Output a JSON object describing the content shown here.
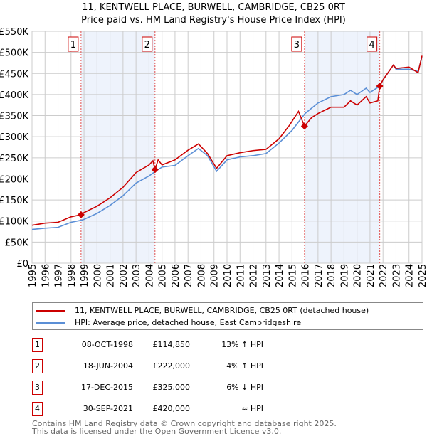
{
  "title_line1": "11, KENTWELL PLACE, BURWELL, CAMBRIDGE, CB25 0RT",
  "title_line2": "Price paid vs. HM Land Registry's House Price Index (HPI)",
  "chart_data": {
    "type": "line",
    "xlim": [
      1995,
      2025
    ],
    "ylim": [
      0,
      550000
    ],
    "yticks": [
      0,
      50000,
      100000,
      150000,
      200000,
      250000,
      300000,
      350000,
      400000,
      450000,
      500000,
      550000
    ],
    "ytick_labels": [
      "£0",
      "£50K",
      "£100K",
      "£150K",
      "£200K",
      "£250K",
      "£300K",
      "£350K",
      "£400K",
      "£450K",
      "£500K",
      "£550K"
    ],
    "xticks": [
      1995,
      1996,
      1997,
      1998,
      1999,
      2000,
      2001,
      2002,
      2003,
      2004,
      2005,
      2006,
      2007,
      2008,
      2009,
      2010,
      2011,
      2012,
      2013,
      2014,
      2015,
      2016,
      2017,
      2018,
      2019,
      2020,
      2021,
      2022,
      2023,
      2024,
      2025
    ],
    "grid": true,
    "legend_placement": "below",
    "series": [
      {
        "name": "11, KENTWELL PLACE, BURWELL, CAMBRIDGE, CB25 0RT (detached house)",
        "color": "#cc0000",
        "x": [
          1995,
          1996,
          1997,
          1998,
          1998.77,
          1999,
          2000,
          2001,
          2002,
          2003,
          2004,
          2004.3,
          2004.46,
          2004.7,
          2005,
          2006,
          2007,
          2007.8,
          2008.5,
          2009.2,
          2010,
          2011,
          2012,
          2013,
          2014,
          2014.8,
          2015.5,
          2015.96,
          2016.5,
          2017,
          2018,
          2019,
          2019.5,
          2020,
          2020.7,
          2021,
          2021.6,
          2021.75,
          2022,
          2022.8,
          2023,
          2024,
          2024.7,
          2025
        ],
        "y": [
          90000,
          95000,
          97000,
          110000,
          114850,
          120000,
          135000,
          155000,
          180000,
          215000,
          233000,
          243000,
          222000,
          245000,
          233000,
          245000,
          268000,
          283000,
          260000,
          225000,
          255000,
          262000,
          267000,
          270000,
          295000,
          327000,
          360000,
          325000,
          345000,
          355000,
          370000,
          370000,
          385000,
          375000,
          395000,
          380000,
          385000,
          420000,
          435000,
          470000,
          462000,
          465000,
          452000,
          492000
        ]
      },
      {
        "name": "HPI: Average price, detached house, East Cambridgeshire",
        "color": "#5b8fd6",
        "x": [
          1995,
          1996,
          1997,
          1998,
          1998.8,
          1999,
          2000,
          2001,
          2002,
          2003,
          2004,
          2004.5,
          2005,
          2006,
          2007,
          2007.8,
          2008.5,
          2009.2,
          2010,
          2011,
          2012,
          2013,
          2014,
          2015,
          2016,
          2017,
          2018,
          2019,
          2019.5,
          2020,
          2020.7,
          2021,
          2021.75,
          2022,
          2022.8,
          2023,
          2024,
          2024.7,
          2025
        ],
        "y": [
          80000,
          83000,
          85000,
          97000,
          102000,
          104000,
          118000,
          137000,
          160000,
          190000,
          207000,
          218000,
          228000,
          232000,
          255000,
          272000,
          255000,
          218000,
          245000,
          252000,
          255000,
          260000,
          285000,
          315000,
          355000,
          380000,
          395000,
          400000,
          410000,
          400000,
          415000,
          405000,
          420000,
          435000,
          470000,
          460000,
          460000,
          455000,
          490000
        ]
      }
    ],
    "markers": [
      {
        "label": "1",
        "x": 1998.77,
        "y": 114850
      },
      {
        "label": "2",
        "x": 2004.46,
        "y": 222000
      },
      {
        "label": "3",
        "x": 2015.96,
        "y": 325000
      },
      {
        "label": "4",
        "x": 2021.75,
        "y": 420000
      }
    ],
    "shaded_ranges": [
      [
        1998.77,
        2004.46
      ],
      [
        2015.96,
        2021.75
      ]
    ]
  },
  "legend": [
    {
      "label": "11, KENTWELL PLACE, BURWELL, CAMBRIDGE, CB25 0RT (detached house)",
      "color": "#cc0000"
    },
    {
      "label": "HPI: Average price, detached house, East Cambridgeshire",
      "color": "#5b8fd6"
    }
  ],
  "sales": [
    {
      "num": "1",
      "date": "08-OCT-1998",
      "price": "£114,850",
      "rel": "13% ↑ HPI"
    },
    {
      "num": "2",
      "date": "18-JUN-2004",
      "price": "£222,000",
      "rel": "4% ↑ HPI"
    },
    {
      "num": "3",
      "date": "17-DEC-2015",
      "price": "£325,000",
      "rel": "6% ↓ HPI"
    },
    {
      "num": "4",
      "date": "30-SEP-2021",
      "price": "£420,000",
      "rel": "≈ HPI"
    }
  ],
  "footer_line1": "Contains HM Land Registry data © Crown copyright and database right 2025.",
  "footer_line2": "This data is licensed under the Open Government Licence v3.0."
}
